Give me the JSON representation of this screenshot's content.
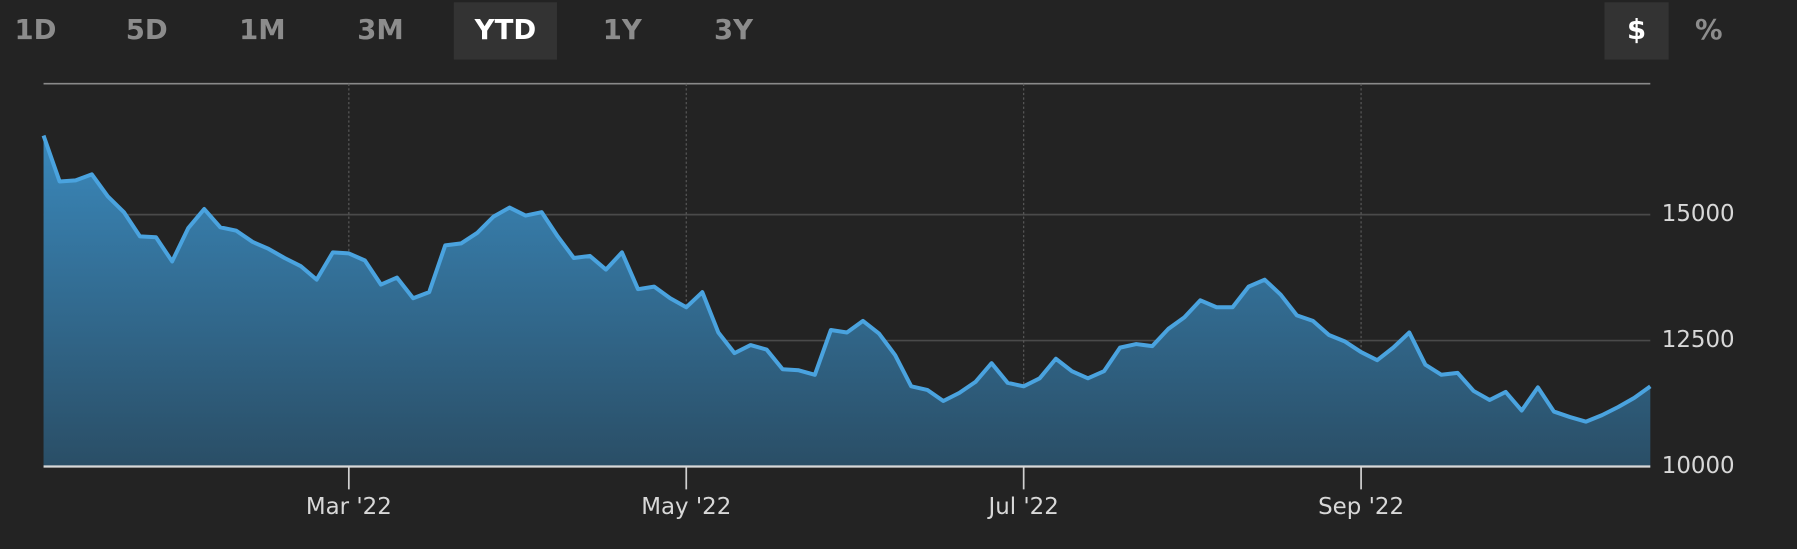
{
  "toolbar": {
    "ranges": [
      {
        "label": "1D"
      },
      {
        "label": "5D"
      },
      {
        "label": "1M"
      },
      {
        "label": "3M"
      },
      {
        "label": "YTD",
        "active": true
      },
      {
        "label": "1Y"
      },
      {
        "label": "3Y"
      }
    ],
    "units": [
      {
        "label": "$",
        "active": true
      },
      {
        "label": "%"
      }
    ]
  },
  "chart_data": {
    "type": "area",
    "categories": [
      null,
      null,
      null,
      null,
      null,
      null,
      null,
      null,
      null,
      null,
      null,
      null,
      null,
      null,
      null,
      null,
      null,
      null,
      null,
      "Mar '22",
      null,
      null,
      null,
      null,
      null,
      null,
      null,
      null,
      null,
      null,
      null,
      null,
      null,
      null,
      null,
      null,
      null,
      null,
      null,
      null,
      "May '22",
      null,
      null,
      null,
      null,
      null,
      null,
      null,
      null,
      null,
      null,
      null,
      null,
      null,
      null,
      null,
      null,
      null,
      null,
      null,
      null,
      "Jul '22",
      null,
      null,
      null,
      null,
      null,
      null,
      null,
      null,
      null,
      null,
      null,
      null,
      null,
      null,
      null,
      null,
      null,
      null,
      null,
      null,
      "Sep '22",
      null,
      null,
      null,
      null,
      null,
      null,
      null,
      null,
      null,
      null,
      null,
      null,
      null,
      null,
      null,
      null,
      null,
      null
    ],
    "values": [
      16570,
      15660,
      15680,
      15800,
      15360,
      15050,
      14570,
      14550,
      14070,
      14730,
      15110,
      14750,
      14680,
      14460,
      14320,
      14140,
      13980,
      13710,
      14250,
      14230,
      14090,
      13610,
      13750,
      13340,
      13460,
      14390,
      14430,
      14640,
      14960,
      15140,
      14980,
      15050,
      14570,
      14140,
      14180,
      13910,
      14250,
      13520,
      13570,
      13340,
      13160,
      13460,
      12660,
      12250,
      12410,
      12320,
      11930,
      11910,
      11820,
      12710,
      12660,
      12890,
      12640,
      12210,
      11590,
      11520,
      11300,
      11460,
      11680,
      12050,
      11660,
      11590,
      11750,
      12140,
      11890,
      11750,
      11890,
      12360,
      12430,
      12390,
      12730,
      12960,
      13300,
      13160,
      13160,
      13570,
      13710,
      13410,
      13000,
      12890,
      12610,
      12480,
      12270,
      12110,
      12360,
      12660,
      12020,
      11820,
      11860,
      11500,
      11320,
      11480,
      11110,
      11570,
      11090,
      10980,
      10890,
      11020,
      11180,
      11360,
      11590
    ],
    "color": "#4aa3df",
    "ylim": [
      10000,
      17600
    ],
    "yticks": [
      10000,
      12500,
      15000
    ],
    "grid": true
  }
}
